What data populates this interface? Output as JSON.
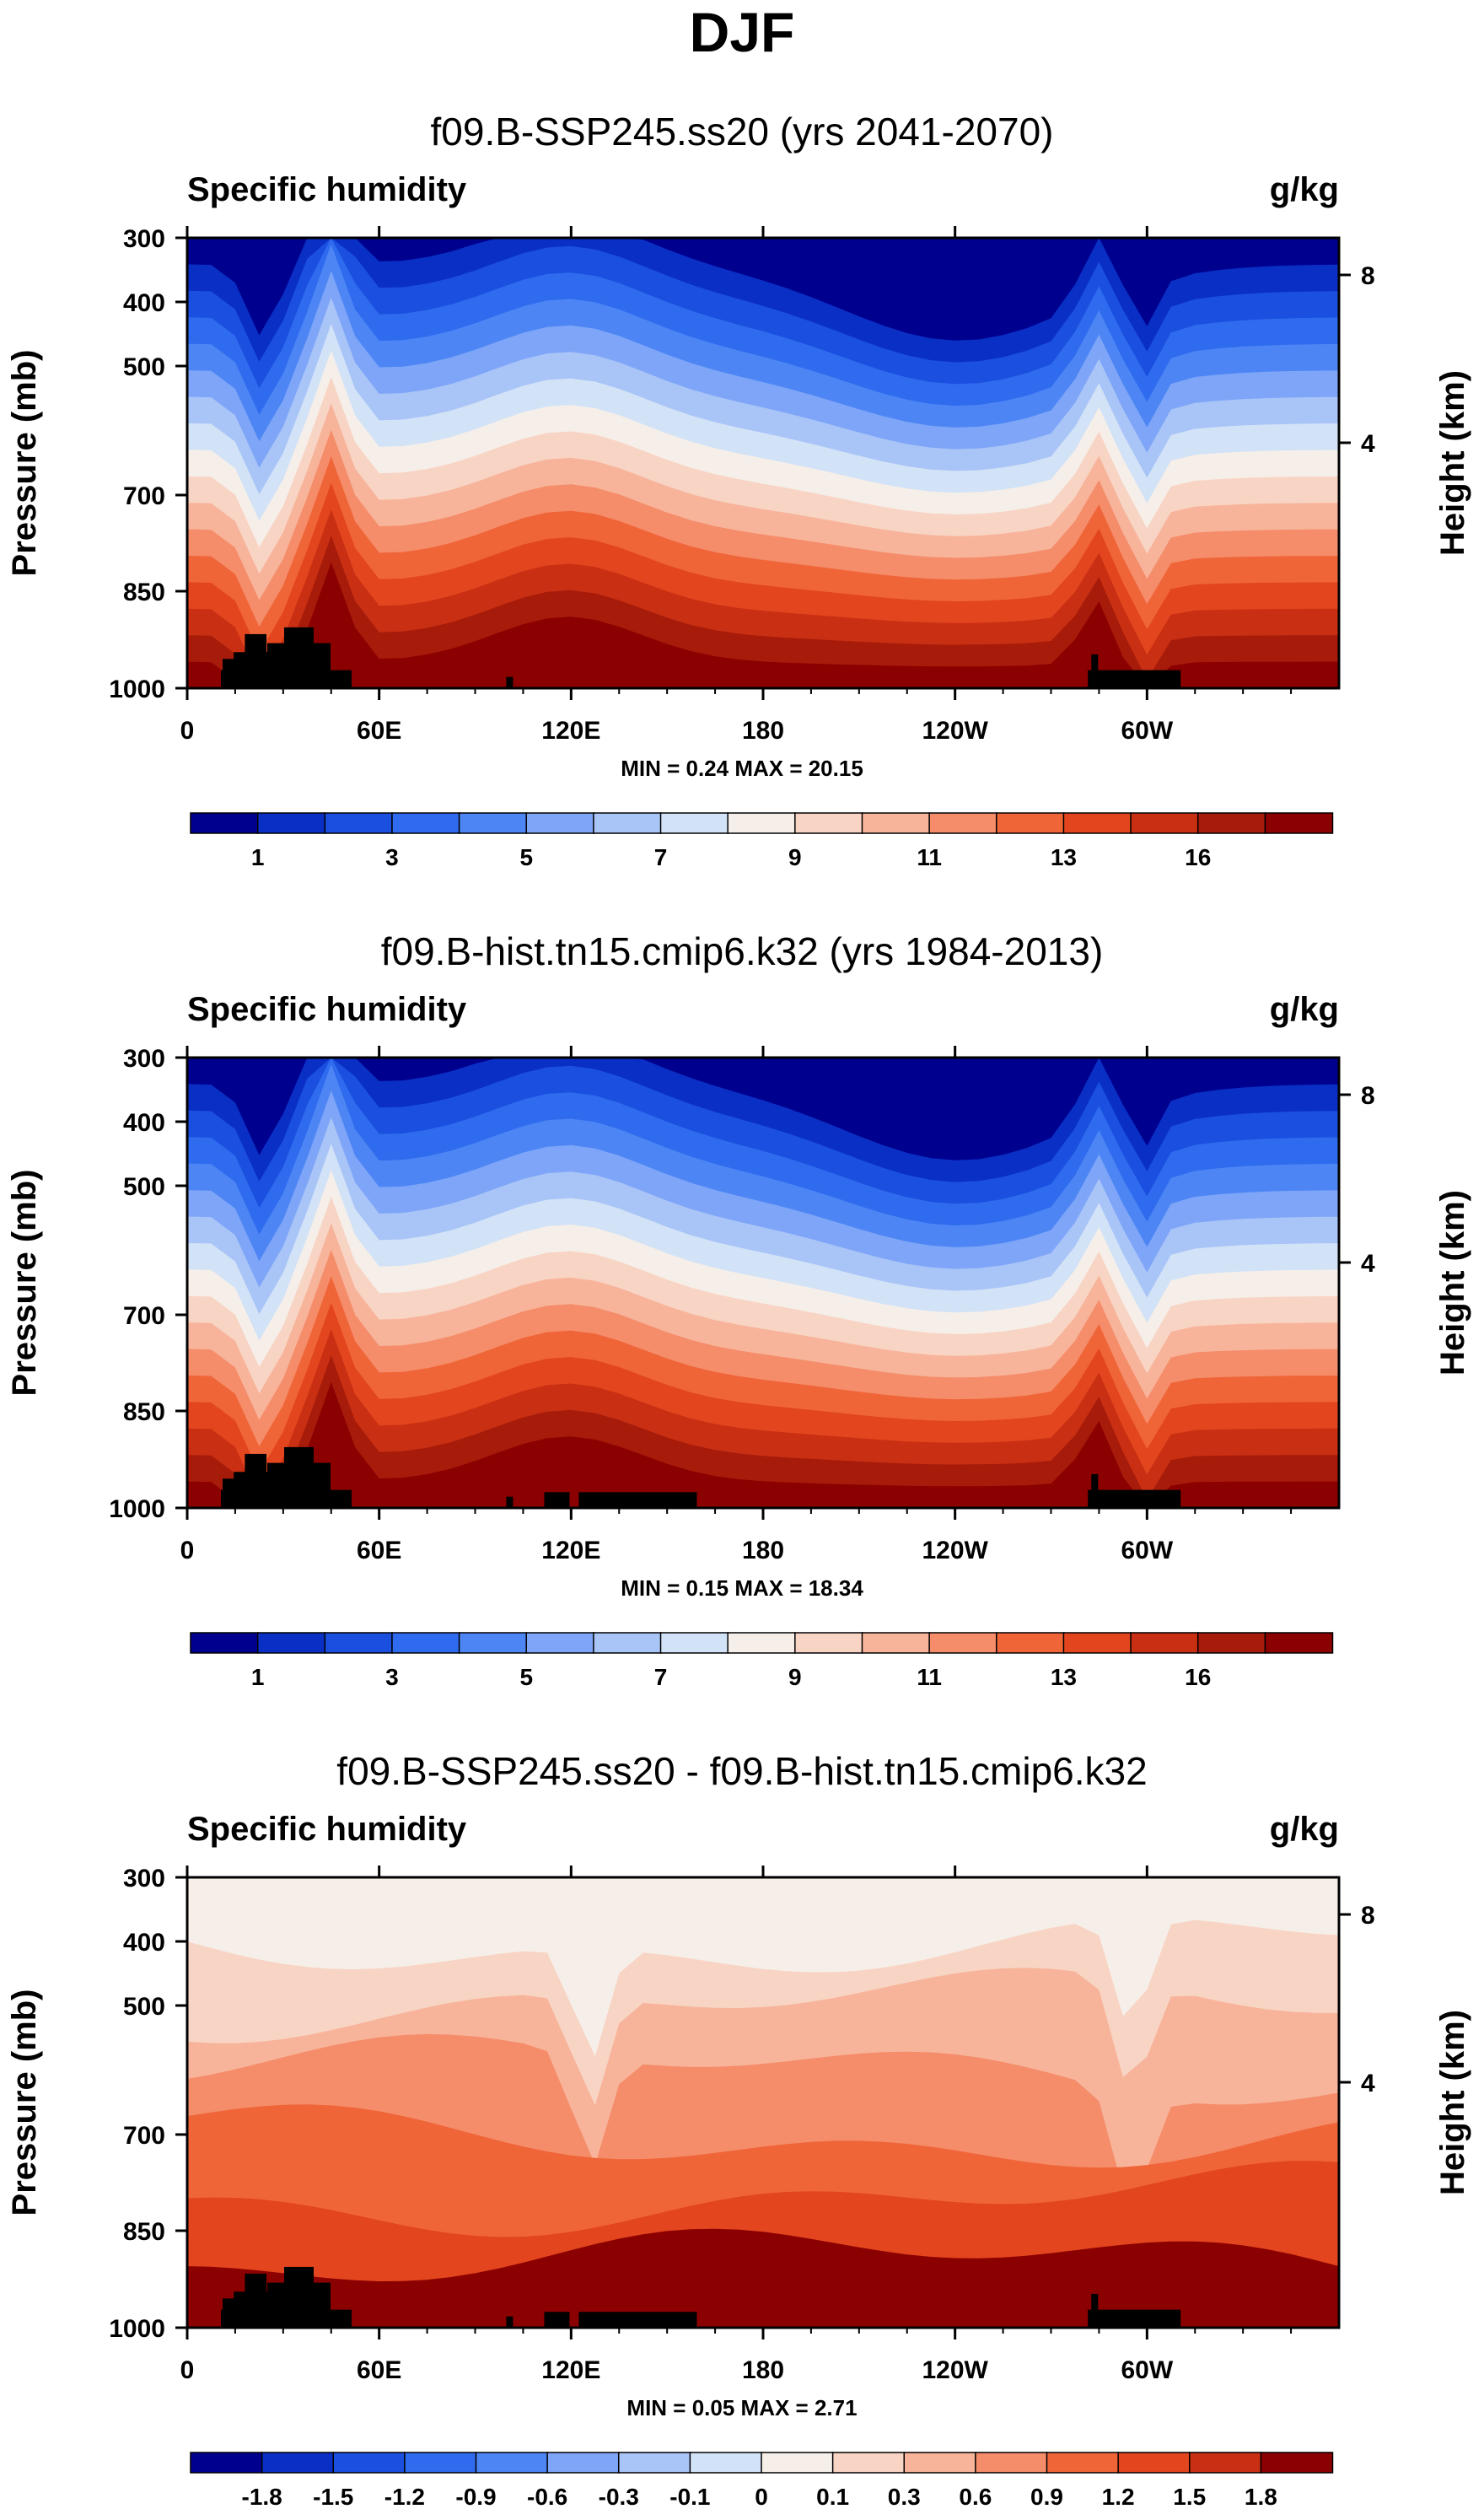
{
  "figure": {
    "title": "DJF"
  },
  "chart_data": [
    {
      "type": "heatmap",
      "title": "f09.B-SSP245.ss20 (yrs 2041-2070)",
      "variable": "Specific humidity",
      "units": "g/kg",
      "ylabel": "Pressure (mb)",
      "ylabel_right": "Height (km)",
      "x_ticks": [
        "0",
        "60E",
        "120E",
        "180",
        "120W",
        "60W"
      ],
      "y_ticks": [
        "300",
        "400",
        "500",
        "700",
        "850",
        "1000"
      ],
      "y_right_ticks": [
        "8",
        "4"
      ],
      "minmax_text": "MIN =   0.24  MAX =  20.15",
      "min": 0.24,
      "max": 20.15,
      "colorbar_labels": [
        "1",
        "3",
        "5",
        "7",
        "9",
        "11",
        "13",
        "16"
      ],
      "colorbar_colors": [
        "#00008f",
        "#0a2fc4",
        "#1a4fdf",
        "#2f6bee",
        "#4d86f4",
        "#7ea5f7",
        "#a9c4f7",
        "#d2e2f7",
        "#f6efe9",
        "#f8d4c4",
        "#f7b49a",
        "#f58c6a",
        "#ef6538",
        "#e3451e",
        "#c92f12",
        "#a61b0a",
        "#8b0000"
      ]
    },
    {
      "type": "heatmap",
      "title": "f09.B-hist.tn15.cmip6.k32 (yrs 1984-2013)",
      "variable": "Specific humidity",
      "units": "g/kg",
      "ylabel": "Pressure (mb)",
      "ylabel_right": "Height (km)",
      "x_ticks": [
        "0",
        "60E",
        "120E",
        "180",
        "120W",
        "60W"
      ],
      "y_ticks": [
        "300",
        "400",
        "500",
        "700",
        "850",
        "1000"
      ],
      "y_right_ticks": [
        "8",
        "4"
      ],
      "minmax_text": "MIN =   0.15  MAX =  18.34",
      "min": 0.15,
      "max": 18.34,
      "colorbar_labels": [
        "1",
        "3",
        "5",
        "7",
        "9",
        "11",
        "13",
        "16"
      ],
      "colorbar_colors": [
        "#00008f",
        "#0a2fc4",
        "#1a4fdf",
        "#2f6bee",
        "#4d86f4",
        "#7ea5f7",
        "#a9c4f7",
        "#d2e2f7",
        "#f6efe9",
        "#f8d4c4",
        "#f7b49a",
        "#f58c6a",
        "#ef6538",
        "#e3451e",
        "#c92f12",
        "#a61b0a",
        "#8b0000"
      ]
    },
    {
      "type": "heatmap",
      "title": "f09.B-SSP245.ss20 - f09.B-hist.tn15.cmip6.k32",
      "variable": "Specific humidity",
      "units": "g/kg",
      "ylabel": "Pressure (mb)",
      "ylabel_right": "Height (km)",
      "x_ticks": [
        "0",
        "60E",
        "120E",
        "180",
        "120W",
        "60W"
      ],
      "y_ticks": [
        "300",
        "400",
        "500",
        "700",
        "850",
        "1000"
      ],
      "y_right_ticks": [
        "8",
        "4"
      ],
      "minmax_text": "MIN =   0.05  MAX =   2.71",
      "min": 0.05,
      "max": 2.71,
      "colorbar_labels": [
        "-1.8",
        "-1.5",
        "-1.2",
        "-0.9",
        "-0.6",
        "-0.3",
        "-0.1",
        "0",
        "0.1",
        "0.3",
        "0.6",
        "0.9",
        "1.2",
        "1.5",
        "1.8"
      ],
      "colorbar_colors": [
        "#00008f",
        "#0a2fc4",
        "#1a4fdf",
        "#2f6bee",
        "#4d86f4",
        "#7ea5f7",
        "#a9c4f7",
        "#d2e2f7",
        "#f6efe9",
        "#f8d4c4",
        "#f7b49a",
        "#f58c6a",
        "#ef6538",
        "#e3451e",
        "#c92f12",
        "#8b0000"
      ]
    }
  ]
}
